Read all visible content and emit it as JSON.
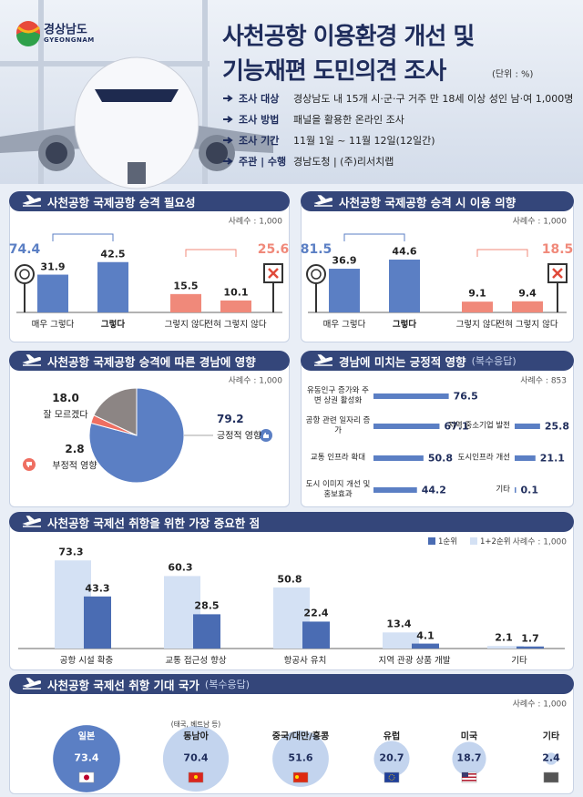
{
  "header": {
    "logo": {
      "name": "경상남도",
      "name_en": "GYEONGNAM"
    },
    "title_lines": [
      "사천공항 이용환경 개선 및",
      "기능재편 도민의견 조사"
    ],
    "unit": "(단위 : %)",
    "survey_info": [
      {
        "label": "조사 대상",
        "text": "경상남도 내 15개 시·군·구 거주 만 18세 이상 성인 남·여 1,000명"
      },
      {
        "label": "조사 방법",
        "text": "패널을 활용한 온라인 조사"
      },
      {
        "label": "조사 기간",
        "text": "11월 1일 ~ 11월 12일(12일간)"
      },
      {
        "label": "주관 | 수행",
        "text": "경남도청 | (주)리서치랩"
      }
    ]
  },
  "chart_data": [
    {
      "type": "bar",
      "title": "사천공항 국제공항 승격 필요성",
      "sample": "사례수 : 1,000",
      "categories": [
        "매우 그렇다",
        "그렇다",
        "그렇지 않다",
        "전혀 그렇지 않다"
      ],
      "values": [
        31.9,
        42.5,
        15.5,
        10.1
      ],
      "colors": [
        "#5b7fc4",
        "#5b7fc4",
        "#f0897a",
        "#f0897a"
      ],
      "totals": [
        74.4,
        25.6
      ]
    },
    {
      "type": "bar",
      "title": "사천공항 국제공항 승격 시 이용 의향",
      "sample": "사례수 : 1,000",
      "categories": [
        "매우 그렇다",
        "그렇다",
        "그렇지 않다",
        "전혀 그렇지 않다"
      ],
      "values": [
        36.9,
        44.6,
        9.1,
        9.4
      ],
      "colors": [
        "#5b7fc4",
        "#5b7fc4",
        "#f0897a",
        "#f0897a"
      ],
      "totals": [
        81.5,
        18.5
      ]
    },
    {
      "type": "pie",
      "title": "사천공항 국제공항 승격에 따른 경남에 영향",
      "sample": "사례수 : 1,000",
      "categories": [
        "긍정적 영향",
        "부정적 영향",
        "잘 모르겠다"
      ],
      "values": [
        79.2,
        2.8,
        18
      ],
      "value_labels": [
        "79.2",
        "2.8",
        "18.0"
      ],
      "colors": [
        "#5b7fc4",
        "#ef6f62",
        "#8c8584"
      ]
    },
    {
      "type": "barh",
      "title": "경남에 미치는 긍정적 영향",
      "subtitle": "(복수응답)",
      "sample": "사례수 : 853",
      "categories": [
        "유동인구 증가와 주변 상권 활성화",
        "공항 관련 일자리 증가",
        "교통 인프라 확대",
        "도시 이미지 개선 및 홍보효과",
        "지역 중소기업 발전",
        "도시인프라 개선",
        "기타"
      ],
      "values": [
        76.5,
        67.1,
        50.8,
        44.2,
        25.8,
        21.1,
        0.1
      ],
      "color": "#5b7fc4"
    },
    {
      "type": "bar",
      "title": "사천공항 국제선 취항을 위한 가장 중요한 점",
      "sample": "사례수 : 1,000",
      "categories": [
        "공항 시설 확충",
        "교통 접근성 향상",
        "항공사 유치",
        "지역 관광 상품 개발",
        "기타"
      ],
      "series": [
        {
          "name": "1순위",
          "color": "#4a6cb3",
          "values": [
            43.3,
            28.5,
            22.4,
            4.1,
            1.7
          ]
        },
        {
          "name": "1+2순위",
          "color": "#d4e1f4",
          "values": [
            73.3,
            60.3,
            50.8,
            13.4,
            2.1
          ]
        }
      ],
      "legend": "top-right"
    },
    {
      "type": "bubble",
      "title": "사천공항 국제선 취항 기대 국가",
      "subtitle": "(복수응답)",
      "sample": "사례수 : 1,000",
      "categories": [
        "일본",
        "동남아",
        "중국/대만/홍콩",
        "유럽",
        "미국",
        "기타"
      ],
      "annotation": "(태국, 베트남 등)",
      "values": [
        73.4,
        70.4,
        51.6,
        20.7,
        18.7,
        2.4
      ],
      "colors": [
        "#5b7fc4",
        "#c3d4ee",
        "#c3d4ee",
        "#c3d4ee",
        "#c3d4ee",
        "#c3d4ee"
      ]
    }
  ]
}
